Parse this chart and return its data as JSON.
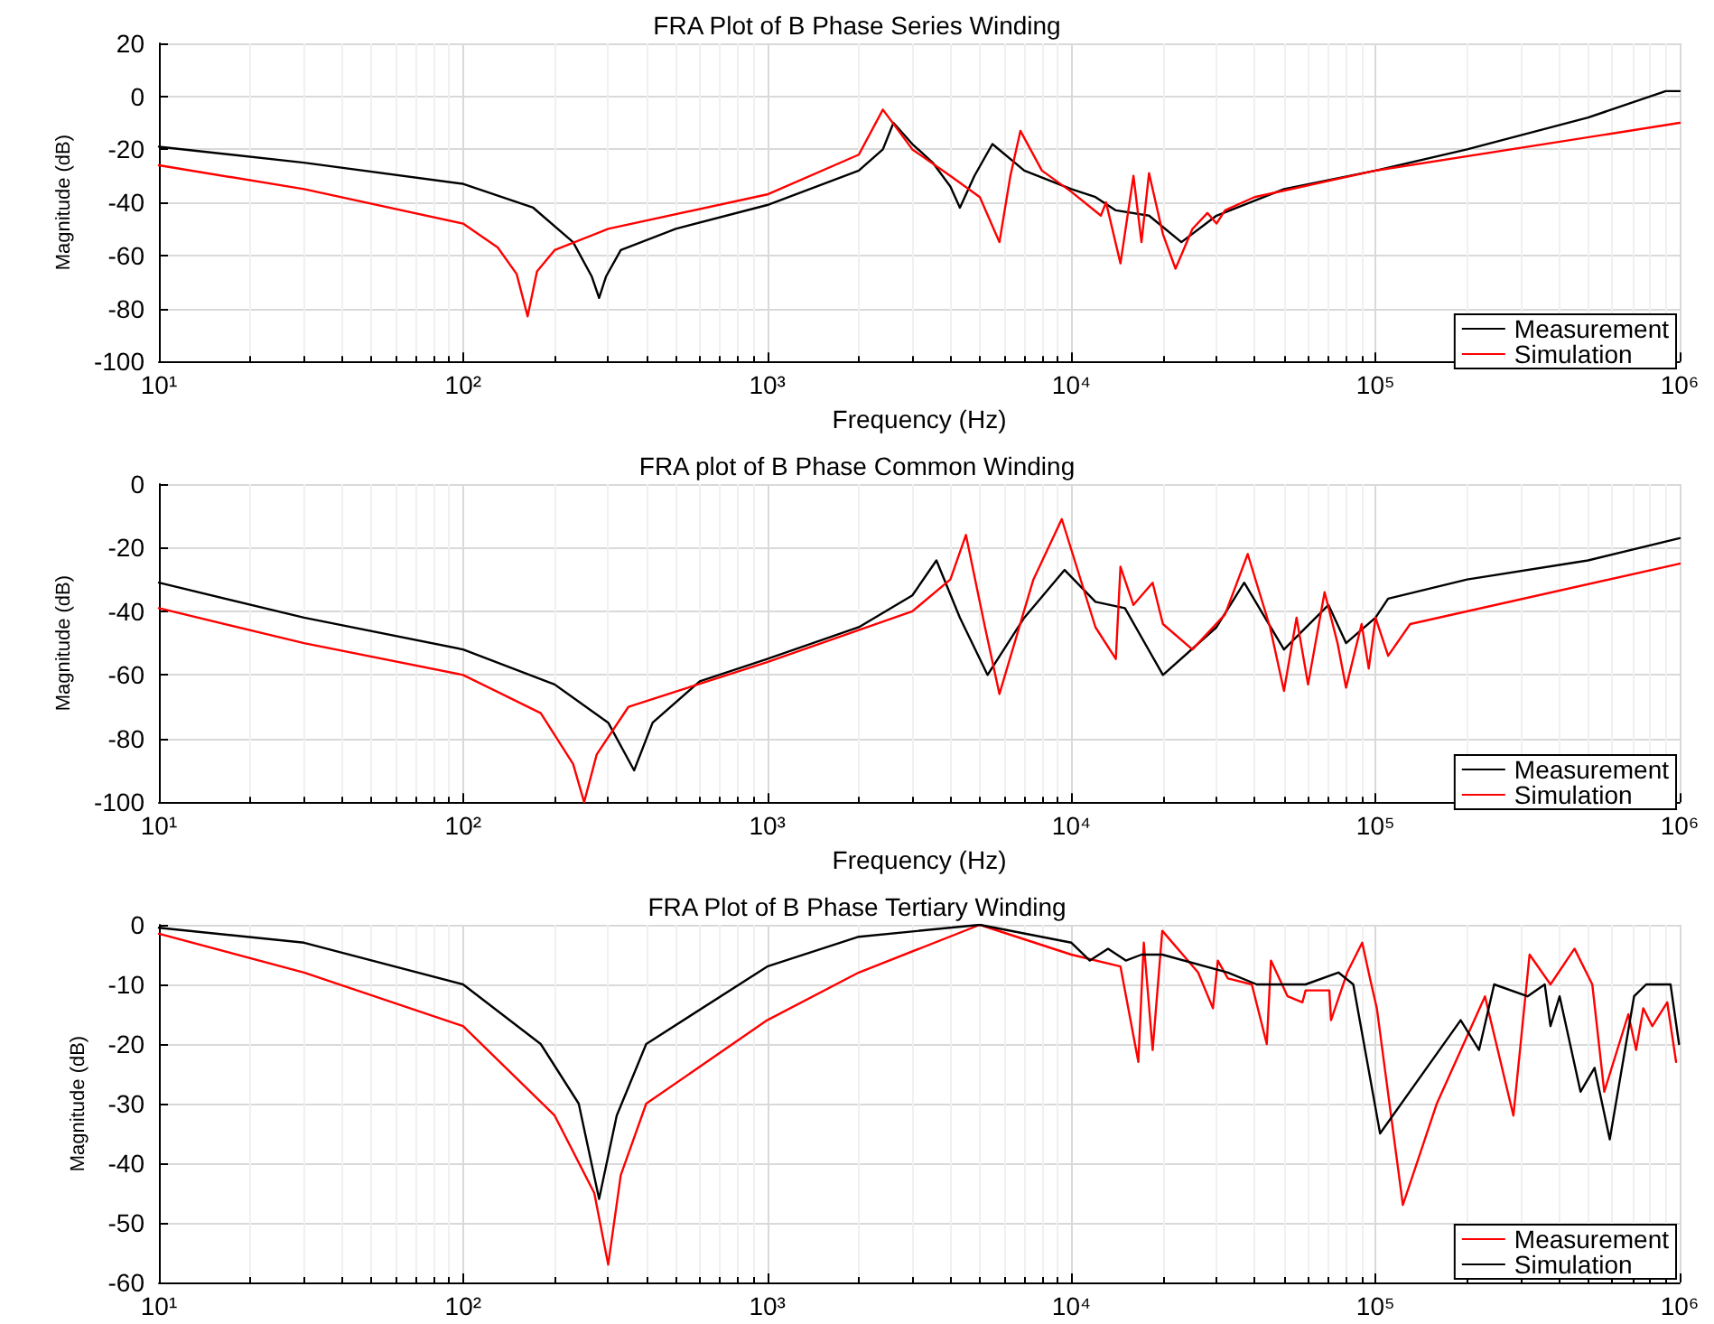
{
  "chart_data": [
    {
      "type": "line",
      "title": "FRA Plot of B Phase Series Winding",
      "xlabel": "Frequency (Hz)",
      "ylabel": "Magnitude (dB)",
      "log": "x",
      "grid": true,
      "legend": "bottom right",
      "xlim": [
        10,
        1000000
      ],
      "ylim": [
        -100,
        20
      ],
      "xticks": [
        {
          "value": 10,
          "label": "10¹"
        },
        {
          "value": 100,
          "label": "10²"
        },
        {
          "value": 1000,
          "label": "10³"
        },
        {
          "value": 10000,
          "label": "10⁴"
        },
        {
          "value": 100000,
          "label": "10⁵"
        },
        {
          "value": 1000000,
          "label": "10⁶"
        }
      ],
      "yticks": [
        -100,
        -80,
        -60,
        -40,
        -20,
        0,
        20
      ],
      "series": [
        {
          "name": "Measurement",
          "color": "#000000",
          "x": [
            10,
            30,
            100,
            170,
            230,
            265,
            280,
            295,
            330,
            500,
            1000,
            2000,
            2400,
            2600,
            3000,
            3500,
            4000,
            4300,
            4800,
            5500,
            7000,
            10000,
            12000,
            14000,
            18000,
            23000,
            30000,
            50000,
            100000,
            200000,
            500000,
            900000,
            1000000
          ],
          "values": [
            -19,
            -25,
            -33,
            -42,
            -55,
            -68,
            -76,
            -68,
            -58,
            -50,
            -41,
            -28,
            -20,
            -10,
            -18,
            -25,
            -34,
            -42,
            -30,
            -18,
            -28,
            -35,
            -38,
            -43,
            -45,
            -55,
            -45,
            -35,
            -28,
            -20,
            -8,
            2,
            2
          ]
        },
        {
          "name": "Simulation",
          "color": "#ff0000",
          "x": [
            10,
            30,
            100,
            130,
            150,
            163,
            175,
            200,
            300,
            1000,
            2000,
            2400,
            3000,
            4000,
            5000,
            5800,
            6300,
            6800,
            8000,
            10000,
            12500,
            13000,
            14500,
            16000,
            17000,
            18000,
            20000,
            22000,
            25000,
            28000,
            30000,
            32000,
            40000,
            100000,
            1000000
          ],
          "values": [
            -26,
            -35,
            -48,
            -57,
            -67,
            -83,
            -66,
            -58,
            -50,
            -37,
            -22,
            -5,
            -20,
            -30,
            -38,
            -55,
            -30,
            -13,
            -28,
            -36,
            -45,
            -40,
            -63,
            -30,
            -55,
            -29,
            -52,
            -65,
            -50,
            -44,
            -48,
            -43,
            -38,
            -28,
            -10
          ]
        }
      ]
    },
    {
      "type": "line",
      "title": "FRA plot of B Phase Common Winding",
      "xlabel": "Frequency (Hz)",
      "ylabel": "Magnitude (dB)",
      "log": "x",
      "grid": true,
      "legend": "bottom right",
      "xlim": [
        10,
        1000000
      ],
      "ylim": [
        -100,
        0
      ],
      "xticks": [
        {
          "value": 10,
          "label": "10¹"
        },
        {
          "value": 100,
          "label": "10²"
        },
        {
          "value": 1000,
          "label": "10³"
        },
        {
          "value": 10000,
          "label": "10⁴"
        },
        {
          "value": 100000,
          "label": "10⁵"
        },
        {
          "value": 1000000,
          "label": "10⁶"
        }
      ],
      "yticks": [
        -100,
        -80,
        -60,
        -40,
        -20,
        0
      ],
      "series": [
        {
          "name": "Measurement",
          "color": "#000000",
          "x": [
            10,
            30,
            100,
            200,
            300,
            365,
            420,
            600,
            1000,
            2000,
            3000,
            3600,
            4300,
            5300,
            7000,
            9500,
            12000,
            15000,
            20000,
            30000,
            37000,
            50000,
            55000,
            70000,
            80000,
            100000,
            110000,
            200000,
            500000,
            1000000
          ],
          "values": [
            -31,
            -42,
            -52,
            -63,
            -75,
            -90,
            -75,
            -62,
            -55,
            -45,
            -35,
            -24,
            -42,
            -60,
            -42,
            -27,
            -37,
            -39,
            -60,
            -45,
            -31,
            -52,
            -48,
            -38,
            -50,
            -42,
            -36,
            -30,
            -24,
            -17
          ]
        },
        {
          "name": "Simulation",
          "color": "#ff0000",
          "x": [
            10,
            30,
            100,
            180,
            230,
            250,
            275,
            350,
            1000,
            3000,
            4000,
            4500,
            5200,
            5800,
            7500,
            9300,
            12000,
            14000,
            14500,
            16000,
            18500,
            20000,
            25000,
            32000,
            38000,
            45000,
            50000,
            55000,
            60000,
            68000,
            75000,
            80000,
            90000,
            95000,
            100000,
            110000,
            130000,
            1000000
          ],
          "values": [
            -39,
            -50,
            -60,
            -72,
            -88,
            -100,
            -85,
            -70,
            -56,
            -40,
            -30,
            -16,
            -45,
            -66,
            -30,
            -11,
            -45,
            -55,
            -26,
            -38,
            -31,
            -44,
            -52,
            -41,
            -22,
            -45,
            -65,
            -42,
            -63,
            -34,
            -50,
            -64,
            -44,
            -58,
            -42,
            -54,
            -44,
            -25
          ]
        }
      ]
    },
    {
      "type": "line",
      "title": "FRA Plot of B Phase Tertiary Winding",
      "ylabel": "Magnitude (dB)",
      "log": "x",
      "grid": true,
      "legend": "bottom right",
      "xlim": [
        10,
        1000000
      ],
      "ylim": [
        -60,
        0
      ],
      "xticks": [
        {
          "value": 10,
          "label": "10¹"
        },
        {
          "value": 100,
          "label": "10²"
        },
        {
          "value": 1000,
          "label": "10³"
        },
        {
          "value": 10000,
          "label": "10⁴"
        },
        {
          "value": 100000,
          "label": "10⁵"
        },
        {
          "value": 1000000,
          "label": "10⁶"
        }
      ],
      "yticks": [
        -60,
        -50,
        -40,
        -30,
        -20,
        -10,
        0
      ],
      "series": [
        {
          "name": "Measurement",
          "color": "#ff0000",
          "x": [
            10,
            30,
            100,
            200,
            270,
            300,
            330,
            400,
            1000,
            2000,
            5000,
            10000,
            14500,
            16600,
            17300,
            18500,
            19900,
            26100,
            29200,
            30300,
            32700,
            39200,
            43900,
            45300,
            51400,
            57500,
            58900,
            70500,
            71400,
            80700,
            90400,
            95900,
            101000,
            123000,
            159000,
            229000,
            284000,
            321000,
            376000,
            451000,
            516000,
            565000,
            678000,
            719000,
            759000,
            813000,
            910000,
            973000
          ],
          "values": [
            -1.5,
            -8,
            -17,
            -32,
            -45,
            -57,
            -42,
            -30,
            -16,
            -8,
            0,
            -5,
            -7,
            -23,
            -3,
            -21,
            -1,
            -8,
            -14,
            -6,
            -9,
            -10,
            -20,
            -6,
            -12,
            -13,
            -11,
            -11,
            -16,
            -8,
            -3,
            -9,
            -14,
            -47,
            -30,
            -12,
            -32,
            -5,
            -10,
            -4,
            -10,
            -28,
            -15,
            -21,
            -14,
            -17,
            -13,
            -23
          ]
        },
        {
          "name": "Simulation",
          "color": "#000000",
          "x": [
            10,
            30,
            100,
            180,
            240,
            280,
            320,
            400,
            1000,
            2000,
            5000,
            10000,
            11500,
            13200,
            15100,
            17000,
            19900,
            32700,
            40700,
            58900,
            75500,
            84500,
            103500,
            190500,
            219000,
            245500,
            316000,
            360000,
            376000,
            403000,
            472000,
            525000,
            589000,
            708000,
            776000,
            933000,
            995000
          ],
          "values": [
            -0.5,
            -3,
            -10,
            -20,
            -30,
            -46,
            -32,
            -20,
            -7,
            -2,
            0,
            -3,
            -6,
            -4,
            -6,
            -5,
            -5,
            -8,
            -10,
            -10,
            -8,
            -10,
            -35,
            -16,
            -21,
            -10,
            -12,
            -10,
            -17,
            -12,
            -28,
            -24,
            -36,
            -12,
            -10,
            -10,
            -20
          ]
        }
      ]
    }
  ]
}
